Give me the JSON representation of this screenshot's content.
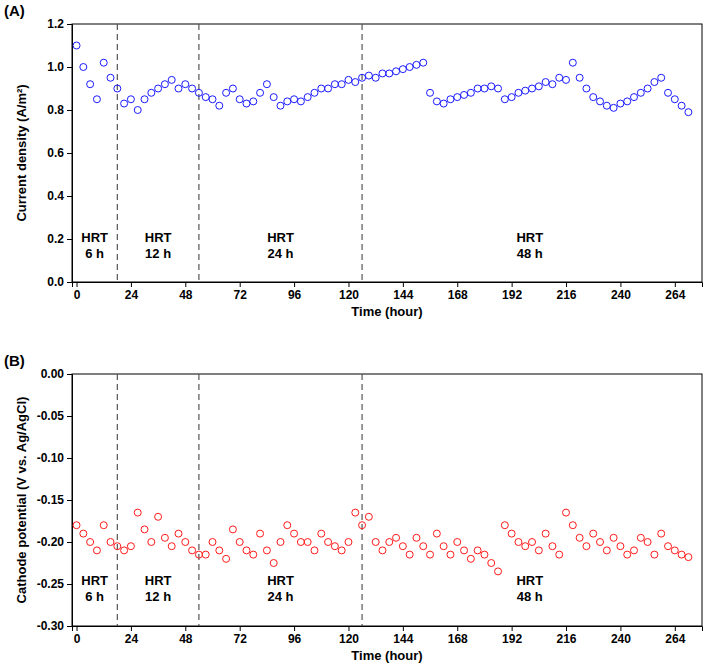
{
  "chart_data": [
    {
      "type": "scatter",
      "title": "(A)",
      "x_label": "Time (hour)",
      "y_label": "Current density (A/m²)",
      "color": "#1a1aff",
      "marker": "open-circle",
      "x": [
        0,
        3,
        6,
        9,
        12,
        15,
        18,
        21,
        24,
        27,
        30,
        33,
        36,
        39,
        42,
        45,
        48,
        51,
        54,
        57,
        60,
        63,
        66,
        69,
        72,
        75,
        78,
        81,
        84,
        87,
        90,
        93,
        96,
        99,
        102,
        105,
        108,
        111,
        114,
        117,
        120,
        123,
        126,
        129,
        132,
        135,
        138,
        141,
        144,
        147,
        150,
        153,
        156,
        159,
        162,
        165,
        168,
        171,
        174,
        177,
        180,
        183,
        186,
        189,
        192,
        195,
        198,
        201,
        204,
        207,
        210,
        213,
        216,
        219,
        222,
        225,
        228,
        231,
        234,
        237,
        240,
        243,
        246,
        249,
        252,
        255,
        258,
        261,
        264,
        267,
        270
      ],
      "values": [
        1.1,
        1.0,
        0.92,
        0.85,
        1.02,
        0.95,
        0.9,
        0.83,
        0.85,
        0.8,
        0.85,
        0.88,
        0.9,
        0.92,
        0.94,
        0.9,
        0.92,
        0.9,
        0.88,
        0.86,
        0.85,
        0.82,
        0.88,
        0.9,
        0.85,
        0.83,
        0.84,
        0.88,
        0.92,
        0.86,
        0.82,
        0.84,
        0.85,
        0.84,
        0.86,
        0.88,
        0.9,
        0.9,
        0.92,
        0.92,
        0.94,
        0.93,
        0.95,
        0.96,
        0.95,
        0.97,
        0.97,
        0.98,
        0.99,
        1.0,
        1.01,
        1.02,
        0.88,
        0.84,
        0.83,
        0.85,
        0.86,
        0.87,
        0.88,
        0.9,
        0.9,
        0.91,
        0.9,
        0.85,
        0.86,
        0.88,
        0.89,
        0.9,
        0.91,
        0.93,
        0.92,
        0.95,
        0.94,
        1.02,
        0.95,
        0.9,
        0.86,
        0.84,
        0.82,
        0.81,
        0.83,
        0.84,
        0.86,
        0.88,
        0.9,
        0.93,
        0.95,
        0.88,
        0.85,
        0.82,
        0.79
      ],
      "xlim": [
        -2,
        276
      ],
      "xticks": [
        0,
        24,
        48,
        72,
        96,
        120,
        144,
        168,
        192,
        216,
        240,
        264
      ],
      "ylim": [
        0,
        1.2
      ],
      "yticks": [
        {
          "value": 0,
          "label": "0.0"
        },
        0.2,
        0.4,
        0.6,
        0.8,
        {
          "value": 1,
          "label": "1.0"
        },
        1.2
      ],
      "dividers": [
        18,
        54,
        126
      ],
      "annotations": [
        {
          "text": [
            "HRT",
            "6 h"
          ],
          "x": 8,
          "y": 0.17
        },
        {
          "text": [
            "HRT",
            "12 h"
          ],
          "x": 36,
          "y": 0.17
        },
        {
          "text": [
            "HRT",
            "24 h"
          ],
          "x": 90,
          "y": 0.17
        },
        {
          "text": [
            "HRT",
            "48 h"
          ],
          "x": 200,
          "y": 0.17
        }
      ]
    },
    {
      "type": "scatter",
      "title": "(B)",
      "x_label": "Time (hour)",
      "y_label": "Cathode potential (V vs. Ag/AgCl)",
      "color": "#ff1a1a",
      "marker": "open-circle",
      "x": [
        0,
        3,
        6,
        9,
        12,
        15,
        18,
        21,
        24,
        27,
        30,
        33,
        36,
        39,
        42,
        45,
        48,
        51,
        54,
        57,
        60,
        63,
        66,
        69,
        72,
        75,
        78,
        81,
        84,
        87,
        90,
        93,
        96,
        99,
        102,
        105,
        108,
        111,
        114,
        117,
        120,
        123,
        126,
        129,
        132,
        135,
        138,
        141,
        144,
        147,
        150,
        153,
        156,
        159,
        162,
        165,
        168,
        171,
        174,
        177,
        180,
        183,
        186,
        189,
        192,
        195,
        198,
        201,
        204,
        207,
        210,
        213,
        216,
        219,
        222,
        225,
        228,
        231,
        234,
        237,
        240,
        243,
        246,
        249,
        252,
        255,
        258,
        261,
        264,
        267,
        270
      ],
      "values": [
        -0.18,
        -0.19,
        -0.2,
        -0.21,
        -0.18,
        -0.2,
        -0.205,
        -0.21,
        -0.205,
        -0.165,
        -0.185,
        -0.2,
        -0.17,
        -0.195,
        -0.205,
        -0.19,
        -0.2,
        -0.21,
        -0.215,
        -0.215,
        -0.2,
        -0.21,
        -0.22,
        -0.185,
        -0.2,
        -0.21,
        -0.215,
        -0.19,
        -0.21,
        -0.225,
        -0.2,
        -0.18,
        -0.19,
        -0.2,
        -0.2,
        -0.21,
        -0.19,
        -0.2,
        -0.205,
        -0.21,
        -0.2,
        -0.165,
        -0.18,
        -0.17,
        -0.2,
        -0.21,
        -0.2,
        -0.195,
        -0.205,
        -0.215,
        -0.195,
        -0.205,
        -0.215,
        -0.19,
        -0.205,
        -0.215,
        -0.2,
        -0.21,
        -0.22,
        -0.21,
        -0.215,
        -0.225,
        -0.235,
        -0.18,
        -0.19,
        -0.2,
        -0.205,
        -0.2,
        -0.21,
        -0.19,
        -0.205,
        -0.215,
        -0.165,
        -0.18,
        -0.195,
        -0.205,
        -0.19,
        -0.2,
        -0.21,
        -0.195,
        -0.205,
        -0.215,
        -0.21,
        -0.195,
        -0.2,
        -0.215,
        -0.19,
        -0.205,
        -0.21,
        -0.215,
        -0.218
      ],
      "xlim": [
        -2,
        276
      ],
      "xticks": [
        0,
        24,
        48,
        72,
        96,
        120,
        144,
        168,
        192,
        216,
        240,
        264
      ],
      "ylim": [
        -0.3,
        0
      ],
      "yticks": [
        {
          "value": -0.3,
          "label": "-0.30"
        },
        {
          "value": -0.25,
          "label": "-0.25"
        },
        {
          "value": -0.2,
          "label": "-0.20"
        },
        {
          "value": -0.15,
          "label": "-0.15"
        },
        {
          "value": -0.1,
          "label": "-0.10"
        },
        {
          "value": -0.05,
          "label": "-0.05"
        },
        {
          "value": 0,
          "label": "0.00"
        }
      ],
      "dividers": [
        18,
        54,
        126
      ],
      "annotations": [
        {
          "text": [
            "HRT",
            "6 h"
          ],
          "x": 8,
          "y": -0.255
        },
        {
          "text": [
            "HRT",
            "12 h"
          ],
          "x": 36,
          "y": -0.255
        },
        {
          "text": [
            "HRT",
            "24 h"
          ],
          "x": 90,
          "y": -0.255
        },
        {
          "text": [
            "HRT",
            "48 h"
          ],
          "x": 200,
          "y": -0.255
        }
      ]
    }
  ]
}
